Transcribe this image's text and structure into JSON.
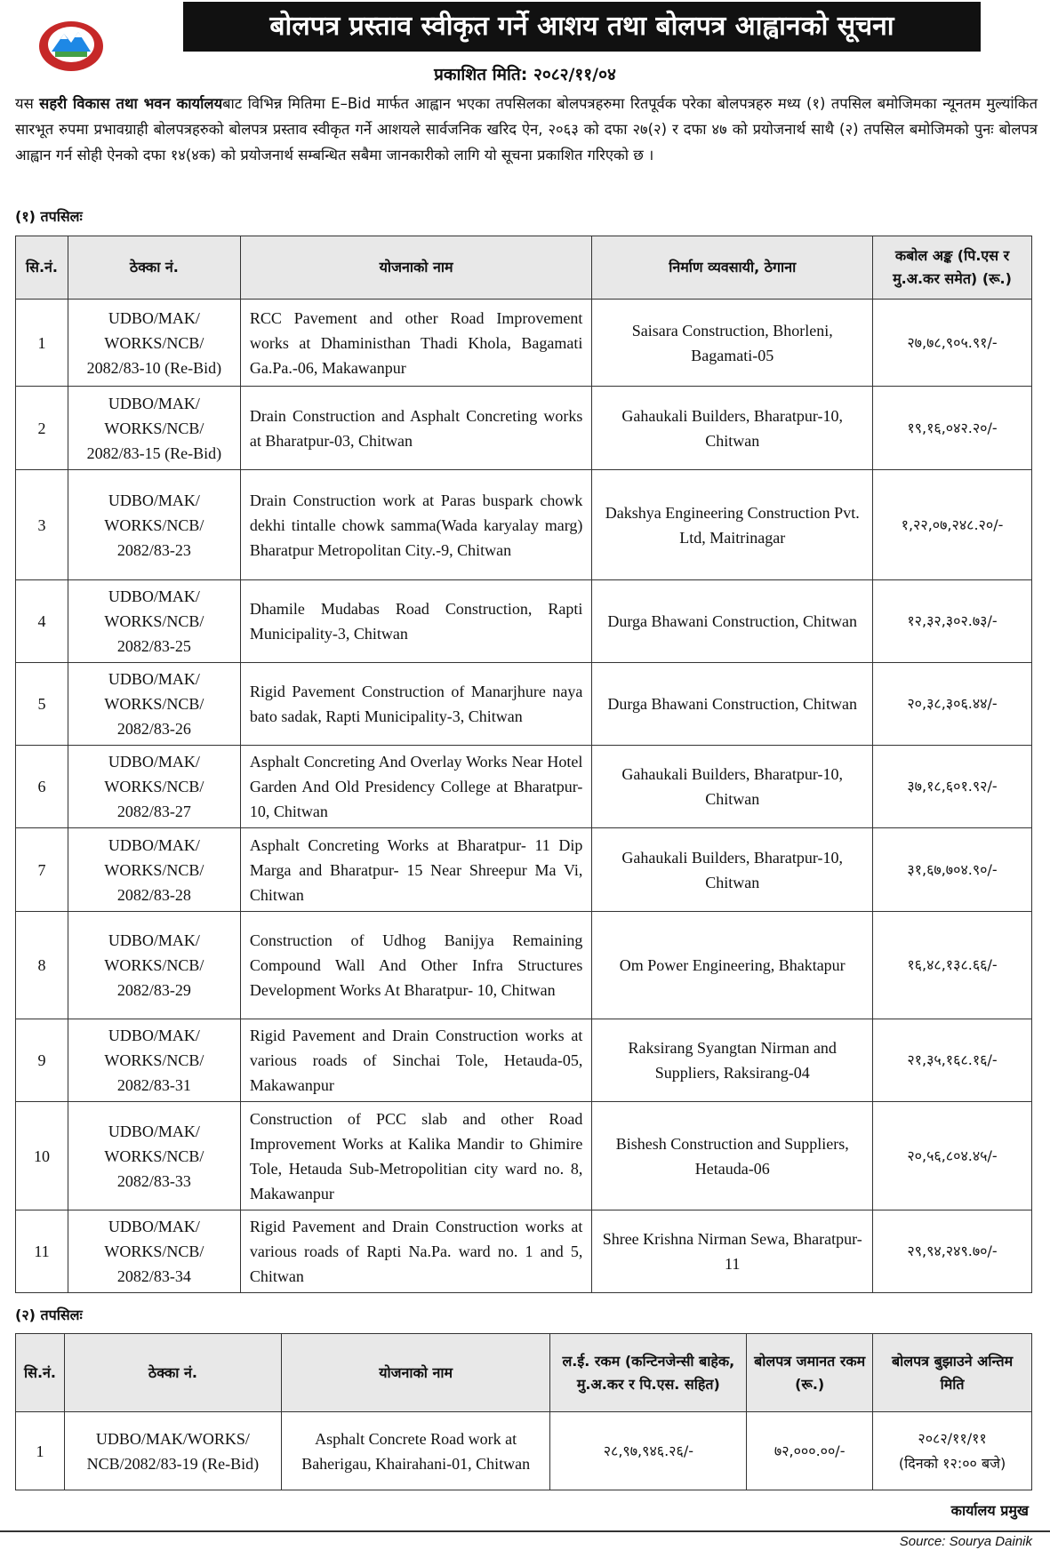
{
  "header": {
    "title": "बोलपत्र प्रस्ताव स्वीकृत गर्ने आशय तथा बोलपत्र आह्वानको सूचना",
    "published_date": "प्रकाशित मिति: २०८२/११/०४"
  },
  "intro": {
    "prefix": "यस ",
    "office": "सहरी विकास तथा भवन कार्यालय",
    "body": "बाट विभिन्न मितिमा E–Bid मार्फत आह्वान भएका तपसिलका बोलपत्रहरुमा रितपूर्वक परेका बोलपत्रहरु मध्य (१) तपसिल बमोजिमका न्यूनतम मुल्यांकित सारभूत रुपमा प्रभावग्राही बोलपत्रहरुको बोलपत्र प्रस्ताव स्वीकृत गर्ने आशयले सार्वजनिक खरिद ऐन, २०६३ को दफा २७(२) र दफा ४७ को प्रयोजनार्थ साथै (२) तपसिल बमोजिमको पुनः बोलपत्र आह्वान गर्न सोही ऐनको दफा १४(४क) को प्रयोजनार्थ सम्बन्धित सबैमा जानकारीको लागि यो सूचना प्रकाशित गरिएको छ ।"
  },
  "table1": {
    "section_label": "(१) तपसिलः",
    "headers": [
      "सि.नं.",
      "ठेक्का नं.",
      "योजनाको नाम",
      "निर्माण व्यवसायी, ठेगाना",
      "कबोल अङ्क (पि.एस र मु.अ.कर समेत) (रू.)"
    ],
    "rows": [
      {
        "sn": "1",
        "contract": "UDBO/MAK/ WORKS/NCB/ 2082/83-10 (Re-Bid)",
        "name": "RCC Pavement and other Road Improvement works at Dhaministhan Thadi Khola, Bagamati Ga.Pa.-06, Makawanpur",
        "contractor": "Saisara Construction, Bhorleni, Bagamati-05",
        "amount": "२७,७८,९०५.९१/-"
      },
      {
        "sn": "2",
        "contract": "UDBO/MAK/ WORKS/NCB/ 2082/83-15 (Re-Bid)",
        "name": "Drain Construction and Asphalt Concreting works at Bharatpur-03, Chitwan",
        "contractor": "Gahaukali Builders, Bharatpur-10, Chitwan",
        "amount": "१९,१६,०४२.२०/-"
      },
      {
        "sn": "3",
        "contract": "UDBO/MAK/ WORKS/NCB/ 2082/83-23",
        "name": "Drain Construction work at Paras buspark chowk dekhi tintalle chowk samma(Wada karyalay marg) Bharatpur Metropolitan City.-9, Chitwan",
        "contractor": "Dakshya Engineering Construction Pvt. Ltd, Maitrinagar",
        "amount": "१,२२,०७,२४८.२०/-"
      },
      {
        "sn": "4",
        "contract": "UDBO/MAK/ WORKS/NCB/ 2082/83-25",
        "name": "Dhamile Mudabas Road Construction, Rapti Municipality-3, Chitwan",
        "contractor": "Durga Bhawani Construction, Chitwan",
        "amount": "१२,३२,३०२.७३/-"
      },
      {
        "sn": "5",
        "contract": "UDBO/MAK/ WORKS/NCB/ 2082/83-26",
        "name": "Rigid Pavement Construction of Manarjhure naya bato sadak, Rapti Municipality-3, Chitwan",
        "contractor": "Durga Bhawani Construction, Chitwan",
        "amount": "२०,३८,३०६.४४/-"
      },
      {
        "sn": "6",
        "contract": "UDBO/MAK/ WORKS/NCB/ 2082/83-27",
        "name": "Asphalt Concreting And Overlay Works Near Hotel Garden And Old Presidency College at Bharatpur- 10, Chitwan",
        "contractor": "Gahaukali Builders, Bharatpur-10, Chitwan",
        "amount": "३७,१८,६०१.९२/-"
      },
      {
        "sn": "7",
        "contract": "UDBO/MAK/ WORKS/NCB/ 2082/83-28",
        "name": "Asphalt Concreting Works at Bharatpur- 11 Dip Marga and Bharatpur- 15 Near Shreepur Ma Vi, Chitwan",
        "contractor": "Gahaukali Builders, Bharatpur-10, Chitwan",
        "amount": "३१,६७,७०४.९०/-"
      },
      {
        "sn": "8",
        "contract": "UDBO/MAK/ WORKS/NCB/ 2082/83-29",
        "name": "Construction of Udhog Banijya Remaining Compound Wall And Other Infra Structures Development Works At Bharatpur- 10, Chitwan",
        "contractor": "Om Power Engineering, Bhaktapur",
        "amount": "१६,४८,१३८.६६/-"
      },
      {
        "sn": "9",
        "contract": "UDBO/MAK/ WORKS/NCB/ 2082/83-31",
        "name": "Rigid Pavement and Drain Construction works at various roads of Sinchai Tole, Hetauda-05, Makawanpur",
        "contractor": "Raksirang Syangtan Nirman and Suppliers, Raksirang-04",
        "amount": "२१,३५,१६८.१६/-"
      },
      {
        "sn": "10",
        "contract": "UDBO/MAK/ WORKS/NCB/ 2082/83-33",
        "name": "Construction of PCC slab and other Road Improvement Works at Kalika Mandir to Ghimire Tole, Hetauda Sub-Metropolitian city ward no. 8, Makawanpur",
        "contractor": "Bishesh Construction and Suppliers, Hetauda-06",
        "amount": "२०,५६,८०४.४५/-"
      },
      {
        "sn": "11",
        "contract": "UDBO/MAK/ WORKS/NCB/ 2082/83-34",
        "name": "Rigid Pavement and Drain Construction works at various roads of Rapti Na.Pa. ward no. 1 and 5, Chitwan",
        "contractor": "Shree Krishna Nirman Sewa, Bharatpur-11",
        "amount": "२९,९४,२४९.७०/-"
      }
    ]
  },
  "table2": {
    "section_label": "(२) तपसिलः",
    "headers": [
      "सि.नं.",
      "ठेक्का नं.",
      "योजनाको नाम",
      "ल.ई. रकम (कन्टिनजेन्सी बाहेक, मु.अ.कर र पि.एस. सहित)",
      "बोलपत्र जमानत रकम (रू.)",
      "बोलपत्र बुझाउने अन्तिम मिति"
    ],
    "rows": [
      {
        "sn": "1",
        "contract": "UDBO/MAK/WORKS/ NCB/2082/83-19 (Re-Bid)",
        "name": "Asphalt Concrete Road work at Baherigau, Khairahani-01, Chitwan",
        "estimate": "२८,९७,९४६.२६/-",
        "security": "७२,०००.००/-",
        "deadline": "२०८२/११/११",
        "deadline_time": "(दिनको १२:०० बजे)"
      }
    ]
  },
  "footer": {
    "signatory": "कार्यालय प्रमुख",
    "source": "Source: Sourya Dainik"
  }
}
